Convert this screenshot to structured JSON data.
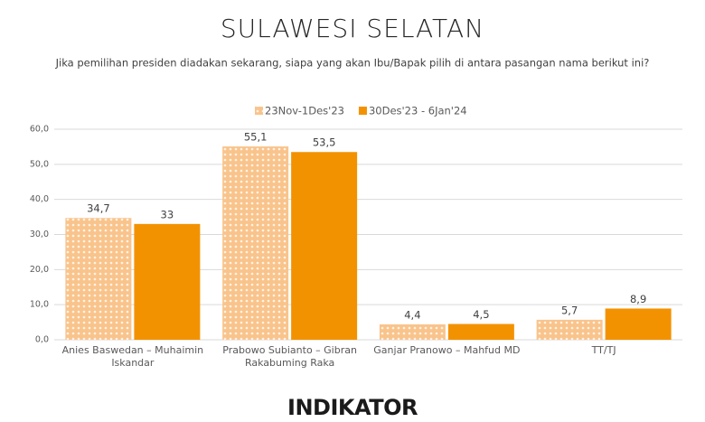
{
  "chart_data": {
    "type": "bar",
    "title": "SULAWESI SELATAN",
    "subtitle": "Jika pemilihan presiden diadakan sekarang, siapa yang akan Ibu/Bapak pilih di antara pasangan nama berikut ini?",
    "categories": [
      "Anies Baswedan – Muhaimin Iskandar",
      "Prabowo Subianto – Gibran Rakabuming Raka",
      "Ganjar Pranowo – Mahfud MD",
      "TT/TJ"
    ],
    "series": [
      {
        "name": "23Nov-1Des'23",
        "color": "#f9c48c",
        "pattern": "dots",
        "values": [
          34.7,
          55.1,
          4.4,
          5.7
        ],
        "value_labels": [
          "34,7",
          "55,1",
          "4,4",
          "5,7"
        ]
      },
      {
        "name": "30Des'23 - 6Jan'24",
        "color": "#f39200",
        "values": [
          33,
          53.5,
          4.5,
          8.9
        ],
        "value_labels": [
          "33",
          "53,5",
          "4,5",
          "8,9"
        ]
      }
    ],
    "ylim": [
      0,
      60
    ],
    "yticks": [
      {
        "value": 0,
        "label": "0,0"
      },
      {
        "value": 10,
        "label": "10,0"
      },
      {
        "value": 20,
        "label": "20,0"
      },
      {
        "value": 30,
        "label": "30,0"
      },
      {
        "value": 40,
        "label": "40,0"
      },
      {
        "value": 50,
        "label": "50,0"
      },
      {
        "value": 60,
        "label": "60,0"
      }
    ],
    "grid": true,
    "legend": "top"
  },
  "logo": "INDIKATOR"
}
